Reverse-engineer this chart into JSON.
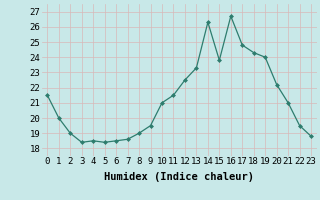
{
  "x": [
    0,
    1,
    2,
    3,
    4,
    5,
    6,
    7,
    8,
    9,
    10,
    11,
    12,
    13,
    14,
    15,
    16,
    17,
    18,
    19,
    20,
    21,
    22,
    23
  ],
  "y": [
    21.5,
    20.0,
    19.0,
    18.4,
    18.5,
    18.4,
    18.5,
    18.6,
    19.0,
    19.5,
    21.0,
    21.5,
    22.5,
    23.3,
    26.3,
    23.8,
    26.7,
    24.8,
    24.3,
    24.0,
    22.2,
    21.0,
    19.5,
    18.8
  ],
  "line_color": "#2e7d6e",
  "marker_color": "#2e7d6e",
  "bg_color": "#c8e8e8",
  "grid_color": "#e8e8e8",
  "xlabel": "Humidex (Indice chaleur)",
  "ylabel_ticks": [
    18,
    19,
    20,
    21,
    22,
    23,
    24,
    25,
    26,
    27
  ],
  "xtick_labels": [
    "0",
    "1",
    "2",
    "3",
    "4",
    "5",
    "6",
    "7",
    "8",
    "9",
    "10",
    "11",
    "12",
    "13",
    "14",
    "15",
    "16",
    "17",
    "18",
    "19",
    "20",
    "21",
    "22",
    "23"
  ],
  "ylim": [
    17.5,
    27.5
  ],
  "xlim": [
    -0.5,
    23.5
  ],
  "axis_label_fontsize": 7.5,
  "tick_fontsize": 6.5
}
